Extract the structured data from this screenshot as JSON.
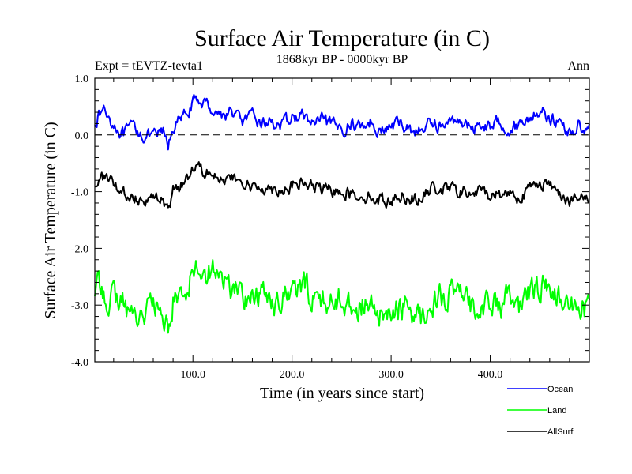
{
  "chart_data": {
    "type": "line",
    "title": "Surface Air Temperature (in C)",
    "subtitle": "1868kyr BP - 0000kyr BP",
    "expt_label": "Expt = tEVTZ-tevta1",
    "season_label": "Ann",
    "xlabel": "Time (in years since start)",
    "ylabel": "Surface Air Temperature (in C)",
    "xlim": [
      1,
      500
    ],
    "ylim": [
      -4.0,
      1.0
    ],
    "x_ticks": [
      {
        "value": 100,
        "label": "100.0"
      },
      {
        "value": 200,
        "label": "200.0"
      },
      {
        "value": 300,
        "label": "300.0"
      },
      {
        "value": 400,
        "label": "400.0"
      }
    ],
    "y_ticks": [
      {
        "value": 1.0,
        "label": "1.0"
      },
      {
        "value": 0.0,
        "label": "0.0"
      },
      {
        "value": -1.0,
        "label": "-1.0"
      },
      {
        "value": -2.0,
        "label": "-2.0"
      },
      {
        "value": -3.0,
        "label": "-3.0"
      },
      {
        "value": -4.0,
        "label": "-4.0"
      }
    ],
    "reference_line": {
      "value": 0.0,
      "style": "dashed"
    },
    "legend_position": "bottom-right",
    "series": [
      {
        "name": "Ocean",
        "color": "#0000ff",
        "anchors": [
          [
            1,
            0.25
          ],
          [
            10,
            0.45
          ],
          [
            20,
            0.2
          ],
          [
            30,
            0.0
          ],
          [
            40,
            0.15
          ],
          [
            50,
            0.0
          ],
          [
            60,
            -0.05
          ],
          [
            70,
            0.05
          ],
          [
            75,
            -0.2
          ],
          [
            80,
            0.15
          ],
          [
            90,
            0.3
          ],
          [
            100,
            0.55
          ],
          [
            110,
            0.6
          ],
          [
            120,
            0.45
          ],
          [
            130,
            0.35
          ],
          [
            140,
            0.4
          ],
          [
            150,
            0.25
          ],
          [
            160,
            0.3
          ],
          [
            170,
            0.2
          ],
          [
            180,
            0.25
          ],
          [
            190,
            0.15
          ],
          [
            200,
            0.3
          ],
          [
            210,
            0.35
          ],
          [
            220,
            0.2
          ],
          [
            230,
            0.25
          ],
          [
            240,
            0.15
          ],
          [
            250,
            0.1
          ],
          [
            260,
            0.2
          ],
          [
            270,
            0.15
          ],
          [
            280,
            0.25
          ],
          [
            290,
            0.05
          ],
          [
            300,
            0.15
          ],
          [
            310,
            0.2
          ],
          [
            320,
            0.1
          ],
          [
            330,
            0.05
          ],
          [
            340,
            0.25
          ],
          [
            350,
            0.15
          ],
          [
            360,
            0.2
          ],
          [
            370,
            0.3
          ],
          [
            380,
            0.1
          ],
          [
            390,
            0.2
          ],
          [
            400,
            0.15
          ],
          [
            410,
            0.25
          ],
          [
            420,
            0.1
          ],
          [
            430,
            0.2
          ],
          [
            440,
            0.3
          ],
          [
            450,
            0.45
          ],
          [
            460,
            0.3
          ],
          [
            470,
            0.2
          ],
          [
            480,
            0.05
          ],
          [
            490,
            0.15
          ],
          [
            500,
            0.15
          ]
        ]
      },
      {
        "name": "Land",
        "color": "#00ff00",
        "anchors": [
          [
            1,
            -2.7
          ],
          [
            10,
            -2.75
          ],
          [
            20,
            -2.9
          ],
          [
            30,
            -3.0
          ],
          [
            40,
            -3.2
          ],
          [
            50,
            -3.1
          ],
          [
            60,
            -3.0
          ],
          [
            70,
            -3.2
          ],
          [
            75,
            -3.4
          ],
          [
            80,
            -2.9
          ],
          [
            90,
            -2.8
          ],
          [
            100,
            -2.4
          ],
          [
            105,
            -2.2
          ],
          [
            110,
            -2.5
          ],
          [
            120,
            -2.3
          ],
          [
            130,
            -2.6
          ],
          [
            140,
            -2.7
          ],
          [
            150,
            -2.8
          ],
          [
            160,
            -2.9
          ],
          [
            170,
            -2.8
          ],
          [
            180,
            -2.9
          ],
          [
            190,
            -2.85
          ],
          [
            200,
            -2.8
          ],
          [
            210,
            -2.7
          ],
          [
            220,
            -2.8
          ],
          [
            230,
            -2.9
          ],
          [
            240,
            -2.95
          ],
          [
            250,
            -2.85
          ],
          [
            260,
            -3.0
          ],
          [
            270,
            -3.0
          ],
          [
            280,
            -3.1
          ],
          [
            290,
            -3.2
          ],
          [
            300,
            -3.2
          ],
          [
            310,
            -3.0
          ],
          [
            320,
            -3.1
          ],
          [
            330,
            -3.25
          ],
          [
            340,
            -2.9
          ],
          [
            350,
            -2.85
          ],
          [
            360,
            -2.8
          ],
          [
            370,
            -2.9
          ],
          [
            380,
            -3.0
          ],
          [
            390,
            -2.95
          ],
          [
            400,
            -3.0
          ],
          [
            410,
            -3.0
          ],
          [
            420,
            -2.9
          ],
          [
            430,
            -3.1
          ],
          [
            440,
            -2.8
          ],
          [
            450,
            -2.65
          ],
          [
            460,
            -2.75
          ],
          [
            470,
            -2.9
          ],
          [
            480,
            -3.1
          ],
          [
            490,
            -3.1
          ],
          [
            500,
            -3.0
          ]
        ]
      },
      {
        "name": "AllSurf",
        "color": "#000000",
        "anchors": [
          [
            1,
            -0.85
          ],
          [
            10,
            -0.75
          ],
          [
            20,
            -0.9
          ],
          [
            30,
            -1.05
          ],
          [
            40,
            -1.1
          ],
          [
            50,
            -1.1
          ],
          [
            60,
            -1.1
          ],
          [
            70,
            -1.15
          ],
          [
            75,
            -1.35
          ],
          [
            80,
            -1.0
          ],
          [
            90,
            -0.85
          ],
          [
            100,
            -0.6
          ],
          [
            105,
            -0.45
          ],
          [
            110,
            -0.6
          ],
          [
            120,
            -0.6
          ],
          [
            130,
            -0.8
          ],
          [
            140,
            -0.8
          ],
          [
            150,
            -0.85
          ],
          [
            160,
            -0.95
          ],
          [
            170,
            -0.9
          ],
          [
            180,
            -0.95
          ],
          [
            190,
            -0.95
          ],
          [
            200,
            -0.9
          ],
          [
            210,
            -0.85
          ],
          [
            220,
            -0.9
          ],
          [
            230,
            -0.95
          ],
          [
            240,
            -1.0
          ],
          [
            250,
            -0.95
          ],
          [
            260,
            -1.05
          ],
          [
            270,
            -1.05
          ],
          [
            280,
            -1.1
          ],
          [
            290,
            -1.15
          ],
          [
            300,
            -1.15
          ],
          [
            310,
            -1.05
          ],
          [
            320,
            -1.1
          ],
          [
            330,
            -1.15
          ],
          [
            340,
            -0.95
          ],
          [
            350,
            -0.95
          ],
          [
            360,
            -0.95
          ],
          [
            370,
            -1.0
          ],
          [
            380,
            -1.05
          ],
          [
            390,
            -1.0
          ],
          [
            400,
            -1.05
          ],
          [
            410,
            -1.05
          ],
          [
            420,
            -1.0
          ],
          [
            430,
            -1.1
          ],
          [
            440,
            -0.95
          ],
          [
            450,
            -0.8
          ],
          [
            460,
            -0.9
          ],
          [
            470,
            -1.0
          ],
          [
            480,
            -1.15
          ],
          [
            490,
            -1.15
          ],
          [
            500,
            -1.1
          ]
        ]
      }
    ]
  }
}
